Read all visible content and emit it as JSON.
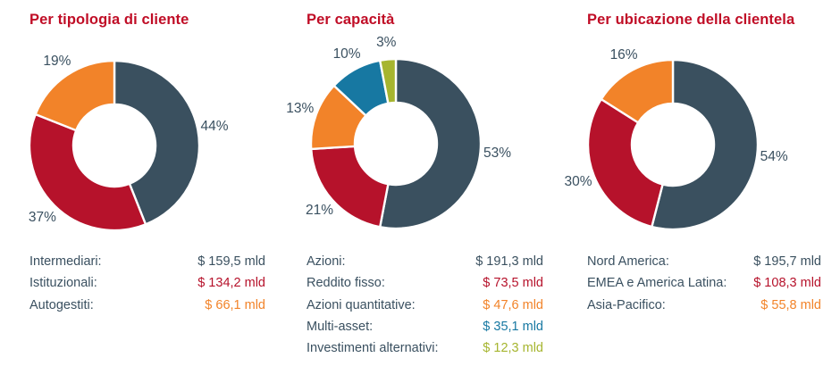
{
  "page_title_colors": {
    "heading_red": "#C00D26",
    "text_slate": "#3A5060"
  },
  "unit_note": "mld",
  "currency_symbol": "$",
  "chart_data": [
    {
      "type": "donut",
      "title": "Per tipologia di cliente",
      "labels": [
        "Intermediari",
        "Istituzionali",
        "Autogestiti"
      ],
      "values_pct": [
        44,
        37,
        19
      ],
      "pct_labels": [
        "44%",
        "37%",
        "19%"
      ],
      "amounts_usd_mld": [
        159.5,
        134.2,
        66.1
      ],
      "legend_labels": [
        "Intermediari:",
        "Istituzionali:",
        "Autogestiti:"
      ],
      "amount_labels": [
        "$ 159,5 mld",
        "$ 134,2 mld",
        "$ 66,1 mld"
      ],
      "colors": [
        "#3A505F",
        "#B6122B",
        "#F28329"
      ],
      "start_angle_deg": 0,
      "direction": "clockwise",
      "legend_position": "below"
    },
    {
      "type": "donut",
      "title": "Per capacità",
      "labels": [
        "Azioni",
        "Reddito fisso",
        "Azioni quantitative",
        "Multi-asset",
        "Investimenti alternativi"
      ],
      "values_pct": [
        53,
        21,
        13,
        10,
        3
      ],
      "pct_labels": [
        "53%",
        "21%",
        "13%",
        "10%",
        "3%"
      ],
      "amounts_usd_mld": [
        191.3,
        73.5,
        47.6,
        35.1,
        12.3
      ],
      "legend_labels": [
        "Azioni:",
        "Reddito fisso:",
        "Azioni quantitative:",
        "Multi-asset:",
        "Investimenti alternativi:"
      ],
      "amount_labels": [
        "$ 191,3 mld",
        "$ 73,5 mld",
        "$ 47,6 mld",
        "$ 35,1 mld",
        "$ 12,3 mld"
      ],
      "colors": [
        "#3A505F",
        "#B6122B",
        "#F28329",
        "#1778A2",
        "#A6B52F"
      ],
      "start_angle_deg": 0,
      "direction": "clockwise",
      "legend_position": "below"
    },
    {
      "type": "donut",
      "title": "Per ubicazione della clientela",
      "labels": [
        "Nord America",
        "EMEA e America Latina",
        "Asia-Pacifico"
      ],
      "values_pct": [
        54,
        30,
        16
      ],
      "pct_labels": [
        "54%",
        "30%",
        "16%"
      ],
      "amounts_usd_mld": [
        195.7,
        108.3,
        55.8
      ],
      "legend_labels": [
        "Nord America:",
        "EMEA e America Latina:",
        "Asia-Pacifico:"
      ],
      "amount_labels": [
        "$ 195,7 mld",
        "$ 108,3 mld",
        "$ 55,8 mld"
      ],
      "colors": [
        "#3A505F",
        "#B6122B",
        "#F28329"
      ],
      "start_angle_deg": 0,
      "direction": "clockwise",
      "legend_position": "below"
    }
  ],
  "donut_style": {
    "outer_radius": 95,
    "inner_radius": 46,
    "separator_color": "#ffffff",
    "label_radius": 114
  }
}
